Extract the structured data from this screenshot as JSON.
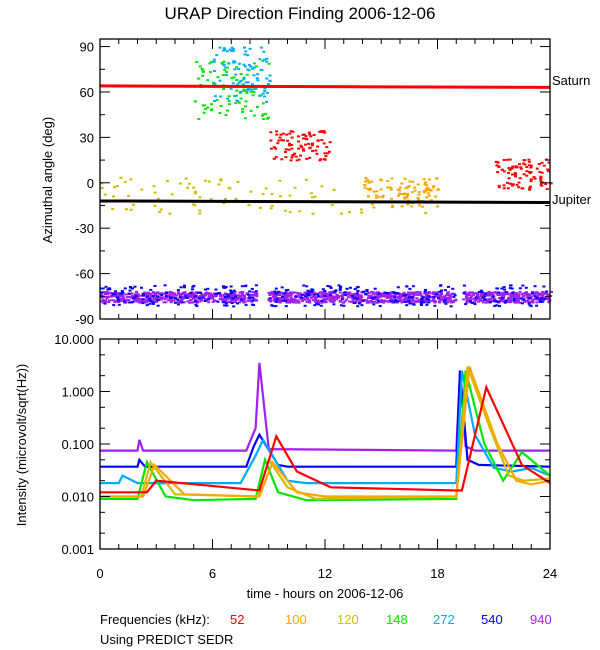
{
  "chart_data": [
    {
      "type": "scatter",
      "title": "URAP Direction Finding  2006-12-06",
      "ylabel": "Azimuthal angle (deg)",
      "xlim": [
        0,
        24
      ],
      "ylim": [
        -90,
        95
      ],
      "yticks": [
        "90",
        "60",
        "30",
        "0",
        "-30",
        "-60",
        "-90"
      ],
      "yticks_values": [
        90,
        60,
        30,
        0,
        -30,
        -60,
        -90
      ],
      "reference_lines": [
        {
          "name": "Saturn",
          "y_start": 64,
          "y_end": 63,
          "color": "#ff0000"
        },
        {
          "name": "Jupiter",
          "y_start": -12,
          "y_end": -13,
          "color": "#000000"
        }
      ],
      "clusters": [
        {
          "freq": "940",
          "x_range": [
            0,
            24
          ],
          "y_center": -75,
          "y_spread": 6,
          "gaps": [
            [
              8.3,
              8.9
            ],
            [
              18.9,
              19.3
            ]
          ],
          "note": "dense band"
        },
        {
          "freq": "540",
          "x_range": [
            0,
            24
          ],
          "y_center": -74,
          "y_spread": 7,
          "gaps": [
            [
              8.3,
              8.9
            ],
            [
              18.9,
              19.3
            ]
          ]
        },
        {
          "freq": "52",
          "x_range": [
            9,
            12.2
          ],
          "y_center": 25,
          "y_spread": 10
        },
        {
          "freq": "148",
          "x_range": [
            5,
            9
          ],
          "y_center": 62,
          "y_spread": 20
        },
        {
          "freq": "272",
          "x_range": [
            6,
            9
          ],
          "y_center": 72,
          "y_spread": 18
        },
        {
          "freq": "120",
          "x_range": [
            0,
            18
          ],
          "y_center": -8,
          "y_spread": 12
        },
        {
          "freq": "100",
          "x_range": [
            14,
            18
          ],
          "y_center": -6,
          "y_spread": 10
        },
        {
          "freq": "52",
          "x_range": [
            21,
            24
          ],
          "y_center": 6,
          "y_spread": 10
        }
      ]
    },
    {
      "type": "line",
      "ylabel": "Intensity (microvolt/sqrt(Hz))",
      "xlabel": "time - hours on 2006-12-06",
      "xlim": [
        0,
        24
      ],
      "ylim": [
        0.001,
        10
      ],
      "yscale": "log",
      "yticks": [
        "10.000",
        "1.000",
        "0.100",
        "0.010",
        "0.001"
      ],
      "yticks_values": [
        10,
        1,
        0.1,
        0.01,
        0.001
      ],
      "xticks": [
        "0",
        "6",
        "12",
        "18",
        "24"
      ],
      "xticks_values": [
        0,
        6,
        12,
        18,
        24
      ],
      "series": [
        {
          "name": "940",
          "x": [
            0,
            2,
            2.1,
            2.3,
            7.8,
            8.3,
            8.5,
            9,
            19,
            19.2,
            19.5,
            20,
            24
          ],
          "y": [
            0.075,
            0.075,
            0.12,
            0.075,
            0.075,
            0.2,
            3.5,
            0.08,
            0.075,
            2.5,
            0.09,
            0.075,
            0.075
          ]
        },
        {
          "name": "540",
          "x": [
            0,
            2,
            2.1,
            2.4,
            7.8,
            8.2,
            8.5,
            9.5,
            10,
            19,
            19.2,
            19.6,
            20.2,
            24
          ],
          "y": [
            0.037,
            0.037,
            0.05,
            0.037,
            0.037,
            0.09,
            0.15,
            0.04,
            0.037,
            0.037,
            2.5,
            0.05,
            0.04,
            0.037
          ]
        },
        {
          "name": "272",
          "x": [
            0,
            1,
            1.2,
            2,
            3,
            7.5,
            8.3,
            8.7,
            10,
            11,
            19,
            19.3,
            20,
            21,
            22,
            23,
            24
          ],
          "y": [
            0.018,
            0.018,
            0.025,
            0.018,
            0.018,
            0.018,
            0.06,
            0.12,
            0.02,
            0.018,
            0.018,
            2.5,
            0.15,
            0.035,
            0.03,
            0.035,
            0.025
          ]
        },
        {
          "name": "148",
          "x": [
            0,
            2,
            2.5,
            3.5,
            5,
            8.3,
            8.8,
            9.5,
            11,
            19,
            19.5,
            20.5,
            21.5,
            22.5,
            24
          ],
          "y": [
            0.009,
            0.009,
            0.045,
            0.01,
            0.0085,
            0.009,
            0.05,
            0.012,
            0.0085,
            0.009,
            2.5,
            0.1,
            0.02,
            0.07,
            0.025
          ]
        },
        {
          "name": "120",
          "x": [
            0,
            2.2,
            2.7,
            4,
            8.4,
            9,
            10,
            11.5,
            19,
            19.6,
            20.8,
            21.8,
            22.6,
            24
          ],
          "y": [
            0.01,
            0.01,
            0.045,
            0.011,
            0.01,
            0.05,
            0.015,
            0.009,
            0.01,
            3,
            0.2,
            0.025,
            0.02,
            0.022
          ]
        },
        {
          "name": "100",
          "x": [
            0,
            2.3,
            2.9,
            4.5,
            8.5,
            9.2,
            10.5,
            12,
            19,
            19.7,
            21.2,
            22.2,
            23,
            24
          ],
          "y": [
            0.01,
            0.01,
            0.04,
            0.011,
            0.01,
            0.045,
            0.012,
            0.01,
            0.01,
            3,
            0.1,
            0.02,
            0.017,
            0.02
          ]
        },
        {
          "name": "52",
          "x": [
            0,
            2.5,
            3,
            8.5,
            9.4,
            10.5,
            12.3,
            19,
            19.3,
            20.6,
            22.5,
            24
          ],
          "y": [
            0.012,
            0.012,
            0.02,
            0.013,
            0.14,
            0.03,
            0.015,
            0.013,
            0.013,
            1.2,
            0.04,
            0.018
          ]
        }
      ]
    }
  ],
  "header": {
    "title": "URAP Direction Finding  2006-12-06"
  },
  "annotations": {
    "saturn": "Saturn",
    "jupiter": "Jupiter"
  },
  "axes": {
    "top_ylabel": "Azimuthal angle (deg)",
    "bottom_ylabel": "Intensity (microvolt/sqrt(Hz))",
    "xlabel": "time - hours on 2006-12-06"
  },
  "legend": {
    "label": "Frequencies (kHz):",
    "items": [
      {
        "name": "52",
        "color": "#ff0000"
      },
      {
        "name": "100",
        "color": "#ffa500"
      },
      {
        "name": "120",
        "color": "#cdbe00"
      },
      {
        "name": "148",
        "color": "#00e600"
      },
      {
        "name": "272",
        "color": "#00aaff"
      },
      {
        "name": "540",
        "color": "#0000ff"
      },
      {
        "name": "940",
        "color": "#a020f0"
      }
    ]
  },
  "footer": {
    "note": "Using PREDICT SEDR"
  }
}
